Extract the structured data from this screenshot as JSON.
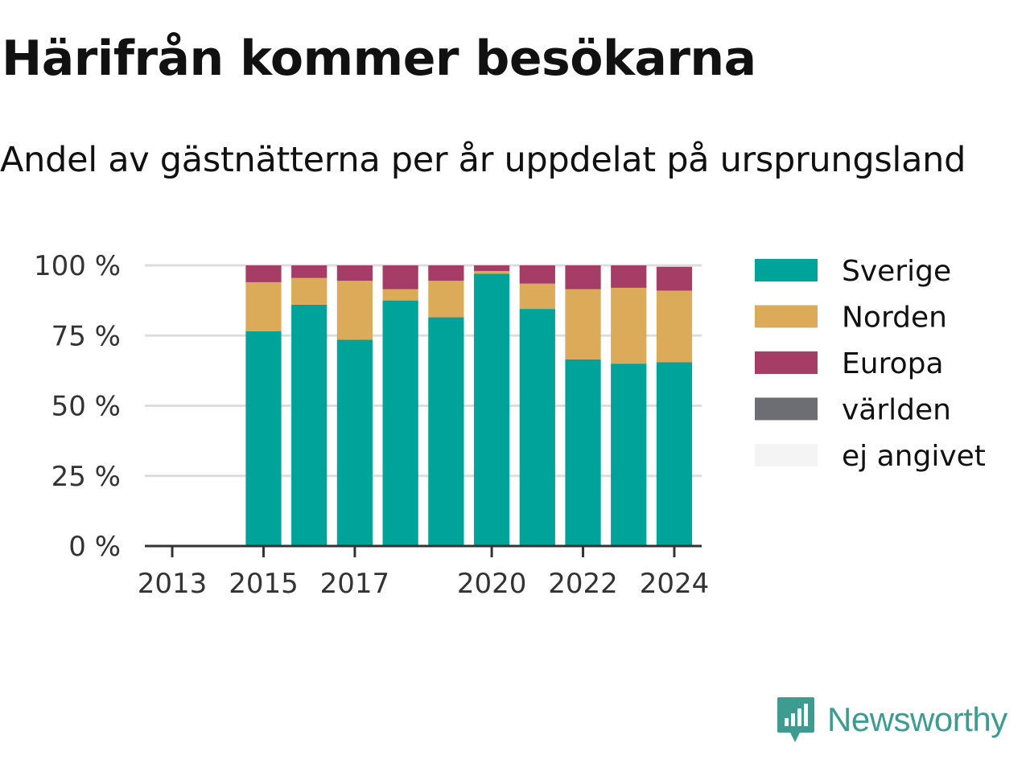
{
  "title": "Härifrån kommer besökarna",
  "subtitle": "Andel av gästnätterna per år uppdelat på ursprungsland",
  "brand": {
    "name": "Newsworthy",
    "icon": "newsworthy-logo-icon",
    "color": "#3d9b8f"
  },
  "chart_data": {
    "type": "bar",
    "stacked": true,
    "title": "Härifrån kommer besökarna",
    "subtitle": "Andel av gästnätterna per år uppdelat på ursprungsland",
    "categories": [
      "2013",
      "2014",
      "2015",
      "2016",
      "2017",
      "2018",
      "2019",
      "2020",
      "2021",
      "2022",
      "2023",
      "2024"
    ],
    "x_tick_labels": [
      "2013",
      "2015",
      "2017",
      "2020",
      "2022",
      "2024"
    ],
    "y_ticks": [
      0,
      25,
      50,
      75,
      100
    ],
    "y_tick_labels": [
      "0 %",
      "25 %",
      "50 %",
      "75 %",
      "100 %"
    ],
    "ylim": [
      0,
      100
    ],
    "grid": true,
    "legend_position": "right",
    "series": [
      {
        "name": "Sverige",
        "color": "#00a39a",
        "values": [
          null,
          null,
          76.5,
          86,
          73.5,
          87.5,
          81.5,
          97,
          84.5,
          66.5,
          65,
          65.5
        ]
      },
      {
        "name": "Norden",
        "color": "#dcab5a",
        "values": [
          null,
          null,
          17.5,
          9.5,
          21,
          4,
          13,
          1,
          9,
          25,
          27,
          25.5
        ]
      },
      {
        "name": "Europa",
        "color": "#a53d66",
        "values": [
          null,
          null,
          6,
          4.5,
          5.5,
          8.5,
          5.5,
          2,
          6.5,
          8.5,
          8,
          8.5
        ]
      },
      {
        "name": "världen",
        "color": "#6d6d74",
        "values": [
          null,
          null,
          0,
          0,
          0,
          0,
          0,
          0,
          0,
          0,
          0,
          0
        ]
      },
      {
        "name": "ej angivet",
        "color": "#f4f4f4",
        "values": [
          null,
          null,
          0,
          0,
          0,
          0,
          0,
          0,
          0,
          0,
          0,
          0
        ]
      }
    ]
  }
}
